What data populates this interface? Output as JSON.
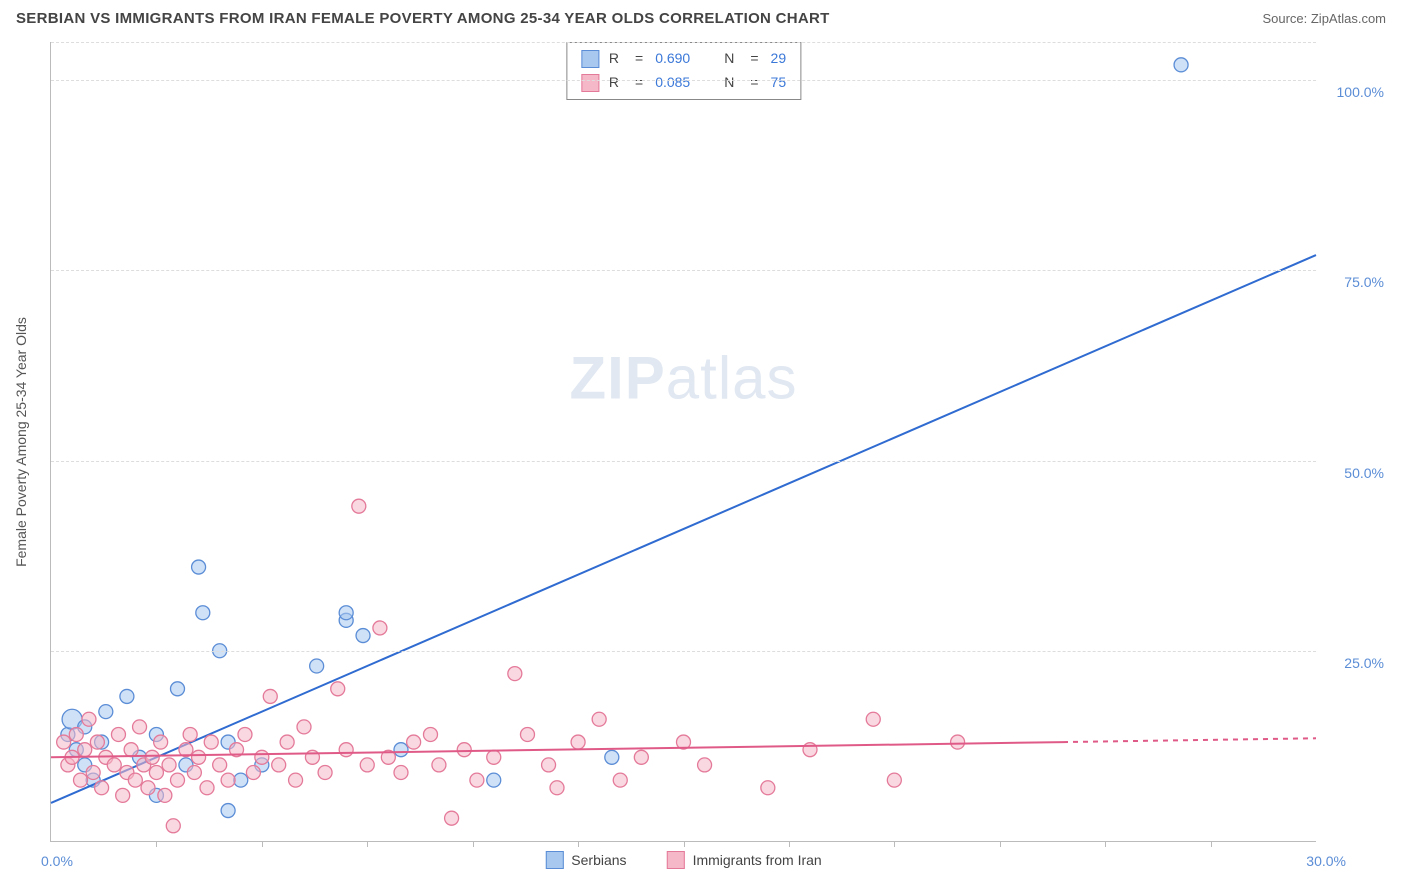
{
  "header": {
    "title": "SERBIAN VS IMMIGRANTS FROM IRAN FEMALE POVERTY AMONG 25-34 YEAR OLDS CORRELATION CHART",
    "source": "Source: ZipAtlas.com"
  },
  "chart": {
    "type": "scatter",
    "y_axis_title": "Female Poverty Among 25-34 Year Olds",
    "watermark": "ZIPatlas",
    "xlim": [
      0,
      30
    ],
    "ylim": [
      0,
      105
    ],
    "x_tick_step": 2.5,
    "x_labels": {
      "start": "0.0%",
      "end": "30.0%"
    },
    "y_ticks": [
      {
        "pos": 25,
        "label": "25.0%"
      },
      {
        "pos": 50,
        "label": "50.0%"
      },
      {
        "pos": 75,
        "label": "75.0%"
      },
      {
        "pos": 100,
        "label": "100.0%"
      }
    ],
    "grid_color": "#dddddd",
    "axis_color": "#bbbbbb",
    "background_color": "#ffffff",
    "series": [
      {
        "name": "Serbians",
        "fill": "#a8c8f0",
        "stroke": "#5b8dd6",
        "line_color": "#2f6bd0",
        "marker_r": 7,
        "fill_opacity": 0.55,
        "R": "0.690",
        "N": "29",
        "trend": {
          "x1": 0,
          "y1": 5,
          "x2": 30,
          "y2": 77,
          "solid_until": 30
        },
        "points": [
          {
            "x": 0.4,
            "y": 14
          },
          {
            "x": 0.5,
            "y": 16,
            "r": 10
          },
          {
            "x": 0.6,
            "y": 12
          },
          {
            "x": 0.8,
            "y": 10
          },
          {
            "x": 0.8,
            "y": 15
          },
          {
            "x": 1.0,
            "y": 8
          },
          {
            "x": 1.2,
            "y": 13
          },
          {
            "x": 1.3,
            "y": 17
          },
          {
            "x": 1.8,
            "y": 19
          },
          {
            "x": 2.1,
            "y": 11
          },
          {
            "x": 2.5,
            "y": 14
          },
          {
            "x": 2.5,
            "y": 6
          },
          {
            "x": 3.0,
            "y": 20
          },
          {
            "x": 3.2,
            "y": 10
          },
          {
            "x": 3.5,
            "y": 36
          },
          {
            "x": 3.6,
            "y": 30
          },
          {
            "x": 4.0,
            "y": 25
          },
          {
            "x": 4.2,
            "y": 13
          },
          {
            "x": 4.2,
            "y": 4
          },
          {
            "x": 4.5,
            "y": 8
          },
          {
            "x": 5.0,
            "y": 10
          },
          {
            "x": 6.3,
            "y": 23
          },
          {
            "x": 7.0,
            "y": 29
          },
          {
            "x": 7.0,
            "y": 30
          },
          {
            "x": 7.4,
            "y": 27
          },
          {
            "x": 8.3,
            "y": 12
          },
          {
            "x": 10.5,
            "y": 8
          },
          {
            "x": 13.3,
            "y": 11
          },
          {
            "x": 26.8,
            "y": 102
          }
        ]
      },
      {
        "name": "Immigrants from Iran",
        "fill": "#f5b8c8",
        "stroke": "#e47a9a",
        "line_color": "#e05a88",
        "marker_r": 7,
        "fill_opacity": 0.55,
        "R": "0.085",
        "N": "75",
        "trend": {
          "x1": 0,
          "y1": 11,
          "x2": 30,
          "y2": 13.5,
          "solid_until": 24
        },
        "points": [
          {
            "x": 0.3,
            "y": 13
          },
          {
            "x": 0.4,
            "y": 10
          },
          {
            "x": 0.5,
            "y": 11
          },
          {
            "x": 0.6,
            "y": 14
          },
          {
            "x": 0.7,
            "y": 8
          },
          {
            "x": 0.8,
            "y": 12
          },
          {
            "x": 0.9,
            "y": 16
          },
          {
            "x": 1.0,
            "y": 9
          },
          {
            "x": 1.1,
            "y": 13
          },
          {
            "x": 1.2,
            "y": 7
          },
          {
            "x": 1.3,
            "y": 11
          },
          {
            "x": 1.5,
            "y": 10
          },
          {
            "x": 1.6,
            "y": 14
          },
          {
            "x": 1.7,
            "y": 6
          },
          {
            "x": 1.8,
            "y": 9
          },
          {
            "x": 1.9,
            "y": 12
          },
          {
            "x": 2.0,
            "y": 8
          },
          {
            "x": 2.1,
            "y": 15
          },
          {
            "x": 2.2,
            "y": 10
          },
          {
            "x": 2.3,
            "y": 7
          },
          {
            "x": 2.4,
            "y": 11
          },
          {
            "x": 2.5,
            "y": 9
          },
          {
            "x": 2.6,
            "y": 13
          },
          {
            "x": 2.7,
            "y": 6
          },
          {
            "x": 2.8,
            "y": 10
          },
          {
            "x": 2.9,
            "y": 2
          },
          {
            "x": 3.0,
            "y": 8
          },
          {
            "x": 3.2,
            "y": 12
          },
          {
            "x": 3.3,
            "y": 14
          },
          {
            "x": 3.4,
            "y": 9
          },
          {
            "x": 3.5,
            "y": 11
          },
          {
            "x": 3.7,
            "y": 7
          },
          {
            "x": 3.8,
            "y": 13
          },
          {
            "x": 4.0,
            "y": 10
          },
          {
            "x": 4.2,
            "y": 8
          },
          {
            "x": 4.4,
            "y": 12
          },
          {
            "x": 4.6,
            "y": 14
          },
          {
            "x": 4.8,
            "y": 9
          },
          {
            "x": 5.0,
            "y": 11
          },
          {
            "x": 5.2,
            "y": 19
          },
          {
            "x": 5.4,
            "y": 10
          },
          {
            "x": 5.6,
            "y": 13
          },
          {
            "x": 5.8,
            "y": 8
          },
          {
            "x": 6.0,
            "y": 15
          },
          {
            "x": 6.2,
            "y": 11
          },
          {
            "x": 6.5,
            "y": 9
          },
          {
            "x": 6.8,
            "y": 20
          },
          {
            "x": 7.0,
            "y": 12
          },
          {
            "x": 7.3,
            "y": 44
          },
          {
            "x": 7.5,
            "y": 10
          },
          {
            "x": 7.8,
            "y": 28
          },
          {
            "x": 8.0,
            "y": 11
          },
          {
            "x": 8.3,
            "y": 9
          },
          {
            "x": 8.6,
            "y": 13
          },
          {
            "x": 9.0,
            "y": 14
          },
          {
            "x": 9.2,
            "y": 10
          },
          {
            "x": 9.5,
            "y": 3
          },
          {
            "x": 9.8,
            "y": 12
          },
          {
            "x": 10.1,
            "y": 8
          },
          {
            "x": 10.5,
            "y": 11
          },
          {
            "x": 11.0,
            "y": 22
          },
          {
            "x": 11.3,
            "y": 14
          },
          {
            "x": 11.8,
            "y": 10
          },
          {
            "x": 12.0,
            "y": 7
          },
          {
            "x": 12.5,
            "y": 13
          },
          {
            "x": 13.0,
            "y": 16
          },
          {
            "x": 13.5,
            "y": 8
          },
          {
            "x": 14.0,
            "y": 11
          },
          {
            "x": 15.0,
            "y": 13
          },
          {
            "x": 15.5,
            "y": 10
          },
          {
            "x": 17.0,
            "y": 7
          },
          {
            "x": 18.0,
            "y": 12
          },
          {
            "x": 19.5,
            "y": 16
          },
          {
            "x": 20.0,
            "y": 8
          },
          {
            "x": 21.5,
            "y": 13
          }
        ]
      }
    ]
  }
}
